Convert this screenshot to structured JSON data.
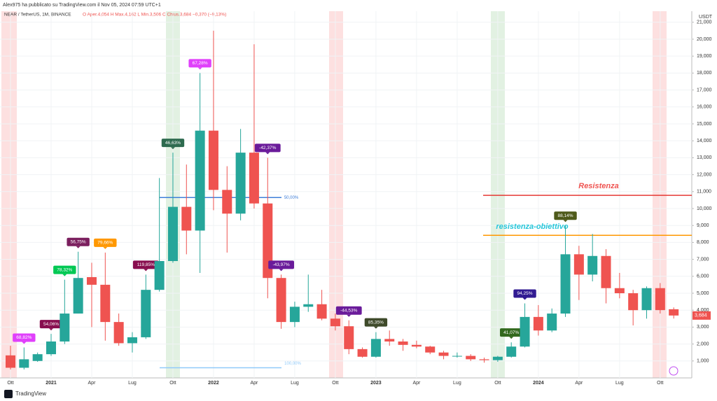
{
  "publisher_line": "Alex975 ha pubblicato su TradingView.com il Nov 05, 2024 07:59 UTC+1",
  "footer_brand": "TradingView",
  "chart_data": {
    "type": "candlestick",
    "symbol": "NEAR / TetherUS, 1M, BINANCE",
    "ohlc_text": "O Aper.4,054 H Max.4,162 L Min.3,506 C Chius.3,684 −0,370 (−9,13%)",
    "currency": "USDT",
    "x": [
      "Ott",
      null,
      null,
      "2021",
      null,
      null,
      "Apr",
      null,
      null,
      "Lug",
      null,
      null,
      "Ott",
      null,
      null,
      "2022",
      null,
      null,
      "Apr",
      null,
      null,
      "Lug",
      null,
      null,
      "Ott",
      null,
      null,
      "2023",
      null,
      null,
      "Apr",
      null,
      null,
      "Lug",
      null,
      null,
      "Ott",
      null,
      null,
      "2024",
      null,
      null,
      "Apr",
      null,
      null,
      "Lug",
      null,
      null,
      "Ott",
      null
    ],
    "open": [
      1.33,
      0.6,
      1.0,
      1.4,
      2.15,
      3.8,
      5.95,
      5.5,
      3.3,
      2.05,
      2.4,
      5.2,
      6.9,
      10.1,
      8.7,
      14.6,
      11.1,
      9.7,
      13.3,
      10.3,
      5.9,
      3.3,
      4.2,
      4.35,
      3.5,
      3.05,
      1.7,
      1.25,
      2.3,
      2.15,
      1.95,
      1.85,
      1.5,
      1.3,
      1.3,
      1.1,
      1.05,
      1.25,
      1.85,
      3.6,
      2.8,
      3.8,
      7.3,
      6.1,
      7.2,
      5.3,
      5.0,
      4.0,
      5.3,
      4.054
    ],
    "high": [
      1.9,
      1.8,
      1.5,
      2.6,
      5.8,
      7.45,
      6.8,
      7.4,
      3.8,
      2.7,
      6.1,
      11.8,
      13.3,
      12.6,
      18.0,
      20.5,
      12.5,
      14.7,
      19.7,
      13.0,
      6.1,
      4.5,
      6.1,
      5.2,
      3.8,
      3.4,
      1.8,
      2.7,
      2.8,
      2.3,
      2.2,
      1.9,
      1.6,
      1.5,
      1.4,
      1.2,
      1.3,
      2.1,
      4.4,
      4.3,
      4.1,
      9.0,
      7.8,
      8.5,
      7.6,
      6.2,
      5.2,
      5.4,
      5.6,
      4.162
    ],
    "low": [
      0.5,
      0.5,
      0.95,
      1.3,
      2.0,
      3.8,
      3.0,
      2.2,
      1.9,
      1.5,
      2.3,
      5.1,
      6.8,
      7.3,
      6.2,
      9.9,
      7.4,
      9.3,
      10.0,
      4.7,
      2.9,
      3.0,
      3.9,
      3.4,
      2.8,
      1.4,
      1.2,
      1.2,
      1.9,
      1.6,
      1.75,
      1.4,
      1.1,
      1.2,
      1.0,
      0.9,
      0.95,
      1.2,
      1.8,
      2.5,
      2.7,
      3.6,
      4.6,
      5.7,
      4.4,
      4.7,
      3.1,
      3.5,
      3.8,
      3.506
    ],
    "close": [
      0.6,
      1.1,
      1.4,
      2.15,
      3.8,
      5.9,
      5.5,
      3.3,
      2.05,
      2.4,
      5.2,
      6.9,
      10.1,
      8.7,
      14.6,
      11.1,
      9.7,
      13.3,
      10.3,
      5.9,
      3.3,
      4.2,
      4.35,
      3.5,
      3.05,
      1.7,
      1.25,
      2.3,
      2.15,
      1.95,
      1.85,
      1.5,
      1.3,
      1.3,
      1.1,
      1.05,
      1.25,
      1.85,
      3.6,
      2.8,
      3.8,
      7.3,
      6.1,
      7.2,
      5.3,
      5.0,
      4.0,
      5.3,
      4.0,
      3.684
    ],
    "last_price_label": "3,684",
    "up_color": "#26a69a",
    "down_color": "#ef5350",
    "candle_labels": [
      null,
      {
        "text": "68,82%",
        "color": "#e040fb"
      },
      null,
      {
        "text": "54,06%",
        "color": "#880e4f"
      },
      {
        "text": "78,32%",
        "color": "#00c853"
      },
      {
        "text": "56,75%",
        "color": "#7b1f5e"
      },
      null,
      {
        "text": "79,66%",
        "color": "#ff9800"
      },
      null,
      null,
      {
        "text": "119,85%",
        "color": "#880e4f"
      },
      null,
      {
        "text": "46,63%",
        "color": "#2e6b4f"
      },
      null,
      {
        "text": "67,28%",
        "color": "#e040fb"
      },
      null,
      null,
      null,
      null,
      {
        "text": "-42,37%",
        "color": "#6a1b9a"
      },
      {
        "text": "-43,97%",
        "color": "#6a1b9a"
      },
      null,
      null,
      null,
      null,
      {
        "text": "-44,53%",
        "color": "#6a1b9a"
      },
      null,
      {
        "text": "85,35%",
        "color": "#3e4a2a"
      },
      null,
      null,
      null,
      null,
      null,
      null,
      null,
      null,
      null,
      {
        "text": "41,07%",
        "color": "#33691e"
      },
      {
        "text": "94,25%",
        "color": "#311b92"
      },
      null,
      null,
      {
        "text": "88,14%",
        "color": "#4e5a1a"
      },
      null,
      null,
      null,
      null,
      null,
      null,
      null,
      null
    ],
    "resistance": {
      "name": "Resistenza",
      "value": 10.78,
      "color": "#e53935",
      "text_color": "#ef5350"
    },
    "target": {
      "name": "resistenza-obiettivo",
      "value": 8.42,
      "color": "#ff9800",
      "text_color": "#26c6da"
    },
    "fib_50": {
      "name": "50,00%",
      "value": 10.65,
      "color": "#3f7fd9"
    },
    "fib_100": {
      "name": "100,00%",
      "value": 0.6,
      "color": "#90caf9"
    },
    "ylim": [
      0,
      21.9
    ],
    "yticks": [
      {
        "value": 1,
        "label": "1,000"
      },
      {
        "value": 2,
        "label": "2,000"
      },
      {
        "value": 3,
        "label": "3,000"
      },
      {
        "value": 4,
        "label": "4,000"
      },
      {
        "value": 5,
        "label": "5,000"
      },
      {
        "value": 6,
        "label": "6,000"
      },
      {
        "value": 7,
        "label": "7,000"
      },
      {
        "value": 8,
        "label": "8,000"
      },
      {
        "value": 9,
        "label": "9,000"
      },
      {
        "value": 10,
        "label": "10,000"
      },
      {
        "value": 11,
        "label": "11,000"
      },
      {
        "value": 12,
        "label": "12,000"
      },
      {
        "value": 13,
        "label": "13,000"
      },
      {
        "value": 14,
        "label": "14,000"
      },
      {
        "value": 15,
        "label": "15,000"
      },
      {
        "value": 16,
        "label": "16,000"
      },
      {
        "value": 17,
        "label": "17,000"
      },
      {
        "value": 18,
        "label": "18,000"
      },
      {
        "value": 19,
        "label": "19,000"
      },
      {
        "value": 20,
        "label": "20,000"
      },
      {
        "value": 21,
        "label": "21,000"
      }
    ],
    "grid": true
  }
}
